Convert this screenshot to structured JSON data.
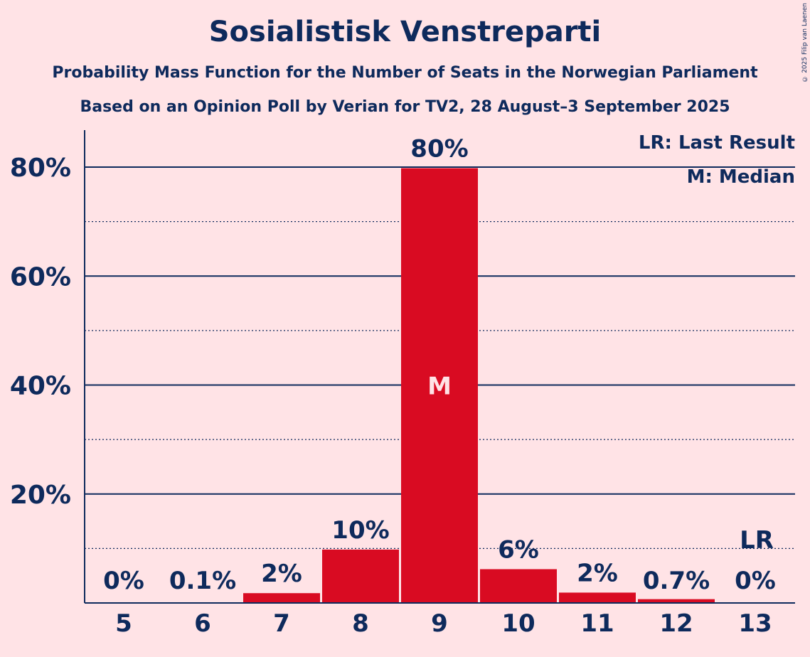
{
  "title": "Sosialistisk Venstreparti",
  "subtitle1": "Probability Mass Function for the Number of Seats in the Norwegian Parliament",
  "subtitle2": "Based on an Opinion Poll by Verian for TV2, 28 August–3 September 2025",
  "copyright": "© 2025 Filip van Laenen",
  "legend": {
    "lr": "LR: Last Result",
    "m": "M: Median"
  },
  "colors": {
    "background": "#ffe3e6",
    "bar": "#d90b22",
    "text": "#0e2a5c"
  },
  "chart_data": {
    "type": "bar",
    "categories": [
      "5",
      "6",
      "7",
      "8",
      "9",
      "10",
      "11",
      "12",
      "13"
    ],
    "values": [
      0,
      0.1,
      1.8,
      9.8,
      79.8,
      6.2,
      1.9,
      0.7,
      0
    ],
    "labels": [
      "0%",
      "0.1%",
      "2%",
      "10%",
      "80%",
      "6%",
      "2%",
      "0.7%",
      "0%"
    ],
    "ylim": [
      0,
      87
    ],
    "yticks_major": [
      20,
      40,
      60,
      80
    ],
    "ytick_labels": [
      "20%",
      "40%",
      "60%",
      "80%"
    ],
    "yticks_minor": [
      10,
      30,
      50,
      70
    ],
    "median_category": "9",
    "median_marker": "M",
    "last_result_category": "13",
    "last_result_marker": "LR"
  }
}
